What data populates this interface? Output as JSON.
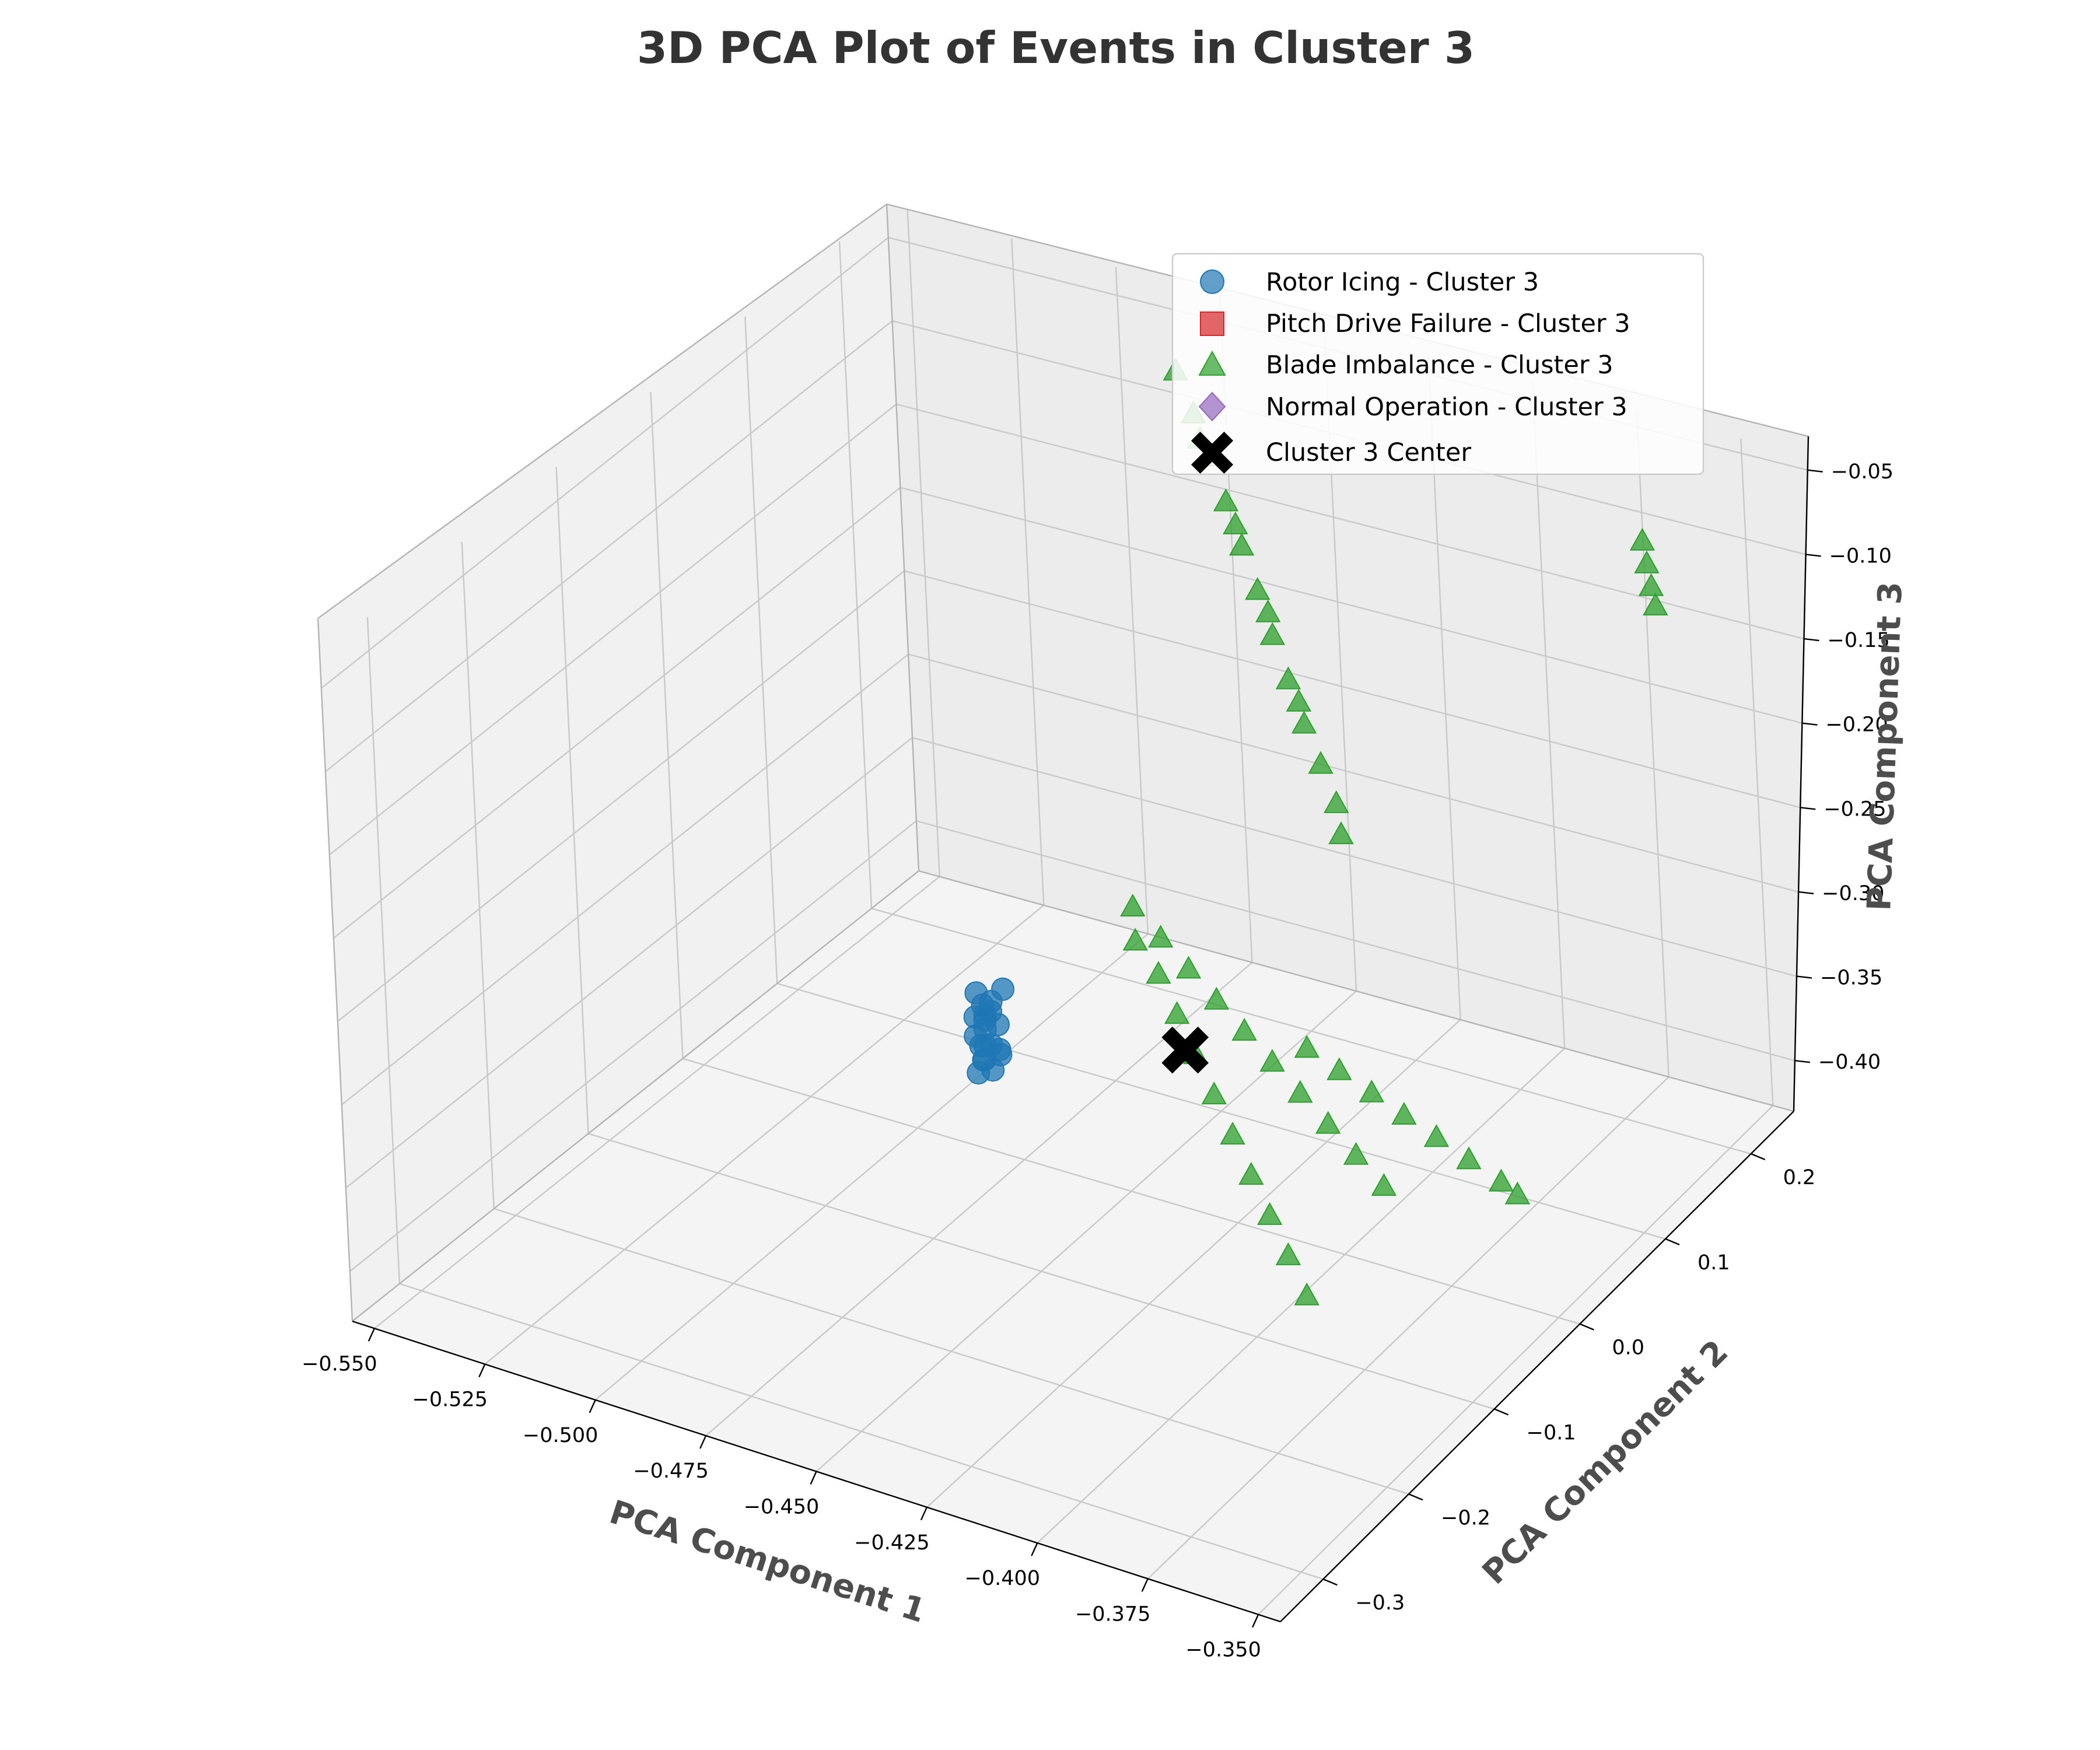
{
  "chart_data": {
    "type": "scatter3d",
    "title": "3D PCA Plot of Events in Cluster 3",
    "xlabel": "PCA Component 1",
    "ylabel": "PCA Component 2",
    "zlabel": "PCA Component 3",
    "x_ticks": [
      "−0.550",
      "−0.525",
      "−0.500",
      "−0.475",
      "−0.450",
      "−0.425",
      "−0.400",
      "−0.375",
      "−0.350"
    ],
    "y_ticks": [
      "−0.3",
      "−0.2",
      "−0.1",
      "0.0",
      "0.1",
      "0.2"
    ],
    "z_ticks": [
      "−0.05",
      "−0.10",
      "−0.15",
      "−0.20",
      "−0.25",
      "−0.30",
      "−0.35",
      "−0.40"
    ],
    "xlim": [
      -0.555,
      -0.345
    ],
    "ylim": [
      -0.35,
      0.25
    ],
    "zlim": [
      -0.43,
      -0.03
    ],
    "grid": true,
    "legend_position": "top-right",
    "legend": [
      {
        "label": "Rotor Icing - Cluster 3",
        "marker": "circle",
        "color": "#1f77b4"
      },
      {
        "label": "Pitch Drive Failure - Cluster 3",
        "marker": "square",
        "color": "#d62728"
      },
      {
        "label": "Blade Imbalance - Cluster 3",
        "marker": "triangle",
        "color": "#2ca02c"
      },
      {
        "label": "Normal Operation - Cluster 3",
        "marker": "diamond",
        "color": "#9467bd"
      },
      {
        "label": "Cluster 3 Center",
        "marker": "x",
        "color": "#000000"
      }
    ],
    "series": [
      {
        "name": "Rotor Icing - Cluster 3",
        "color": "#1f77b4",
        "points": [
          [
            -0.468,
            -0.055,
            -0.328
          ],
          [
            -0.467,
            -0.06,
            -0.335
          ],
          [
            -0.469,
            -0.05,
            -0.322
          ],
          [
            -0.466,
            -0.065,
            -0.34
          ],
          [
            -0.47,
            -0.048,
            -0.318
          ],
          [
            -0.468,
            -0.058,
            -0.345
          ],
          [
            -0.467,
            -0.052,
            -0.312
          ],
          [
            -0.465,
            -0.062,
            -0.332
          ],
          [
            -0.469,
            -0.056,
            -0.338
          ],
          [
            -0.466,
            -0.05,
            -0.326
          ],
          [
            -0.468,
            -0.064,
            -0.35
          ],
          [
            -0.47,
            -0.054,
            -0.308
          ],
          [
            -0.467,
            -0.059,
            -0.32
          ],
          [
            -0.465,
            -0.053,
            -0.342
          ],
          [
            -0.469,
            -0.061,
            -0.33
          ],
          [
            -0.466,
            -0.057,
            -0.315
          ],
          [
            -0.464,
            -0.058,
            -0.336
          ],
          [
            -0.471,
            -0.052,
            -0.324
          ],
          [
            -0.463,
            -0.056,
            -0.3
          ],
          [
            -0.468,
            -0.049,
            -0.355
          ]
        ]
      },
      {
        "name": "Blade Imbalance - Cluster 3",
        "color": "#2ca02c",
        "points": [
          [
            -0.47,
            0.18,
            -0.04
          ],
          [
            -0.465,
            0.175,
            -0.06
          ],
          [
            -0.46,
            0.17,
            -0.08
          ],
          [
            -0.455,
            0.162,
            -0.1
          ],
          [
            -0.45,
            0.155,
            -0.12
          ],
          [
            -0.445,
            0.148,
            -0.14
          ],
          [
            -0.44,
            0.14,
            -0.16
          ],
          [
            -0.435,
            0.133,
            -0.18
          ],
          [
            -0.43,
            0.126,
            -0.2
          ],
          [
            -0.425,
            0.12,
            -0.218
          ],
          [
            -0.42,
            0.113,
            -0.235
          ],
          [
            -0.418,
            0.108,
            -0.25
          ],
          [
            -0.462,
            0.168,
            -0.07
          ],
          [
            -0.452,
            0.158,
            -0.11
          ],
          [
            -0.442,
            0.145,
            -0.15
          ],
          [
            -0.432,
            0.13,
            -0.19
          ],
          [
            -0.368,
            0.22,
            -0.09
          ],
          [
            -0.366,
            0.215,
            -0.1
          ],
          [
            -0.364,
            0.21,
            -0.11
          ],
          [
            -0.362,
            0.205,
            -0.118
          ],
          [
            -0.47,
            0.11,
            -0.33
          ],
          [
            -0.46,
            0.095,
            -0.335
          ],
          [
            -0.45,
            0.08,
            -0.34
          ],
          [
            -0.44,
            0.065,
            -0.345
          ],
          [
            -0.43,
            0.05,
            -0.35
          ],
          [
            -0.42,
            0.035,
            -0.355
          ],
          [
            -0.41,
            0.02,
            -0.36
          ],
          [
            -0.4,
            0.005,
            -0.365
          ],
          [
            -0.39,
            -0.01,
            -0.37
          ],
          [
            -0.38,
            -0.025,
            -0.375
          ],
          [
            -0.465,
            0.09,
            -0.338
          ],
          [
            -0.455,
            0.07,
            -0.342
          ],
          [
            -0.445,
            0.045,
            -0.348
          ],
          [
            -0.435,
            0.02,
            -0.354
          ],
          [
            -0.425,
            -0.005,
            -0.36
          ],
          [
            -0.415,
            -0.03,
            -0.366
          ],
          [
            -0.405,
            -0.055,
            -0.372
          ],
          [
            -0.395,
            -0.08,
            -0.378
          ],
          [
            -0.385,
            -0.105,
            -0.384
          ],
          [
            -0.375,
            -0.13,
            -0.39
          ],
          [
            -0.415,
            0.05,
            -0.35
          ],
          [
            -0.405,
            0.04,
            -0.352
          ],
          [
            -0.395,
            0.03,
            -0.354
          ],
          [
            -0.385,
            0.02,
            -0.356
          ],
          [
            -0.375,
            0.01,
            -0.358
          ],
          [
            -0.365,
            0.0,
            -0.36
          ],
          [
            -0.355,
            -0.01,
            -0.362
          ],
          [
            -0.35,
            -0.015,
            -0.364
          ]
        ]
      },
      {
        "name": "Cluster 3 Center",
        "color": "#000000",
        "points": [
          [
            -0.437,
            0.018,
            -0.352
          ]
        ]
      }
    ]
  }
}
